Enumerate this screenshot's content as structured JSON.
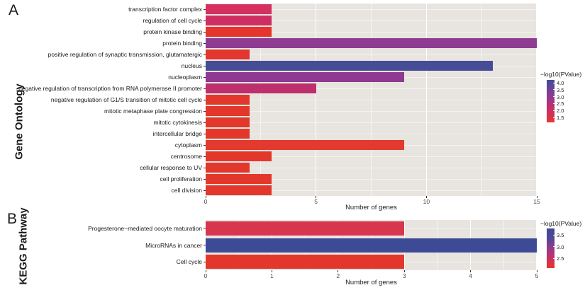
{
  "figure": {
    "panel_a_letter": "A",
    "panel_b_letter": "B"
  },
  "chart_data": [
    {
      "panel": "A",
      "type": "bar",
      "orientation": "horizontal",
      "ylabel": "Gene Ontology",
      "xlabel": "Number of genes",
      "xlim": [
        0,
        15
      ],
      "x_major_ticks": [
        0,
        5,
        10,
        15
      ],
      "x_minor_step": 2.5,
      "grid": "on",
      "panel_background": "#E8E4DF",
      "categories": [
        "transcription factor complex",
        "regulation of cell cycle",
        "protein kinase binding",
        "protein binding",
        "positive regulation of synaptic transmission, glutamatergic",
        "nucleus",
        "nucleoplasm",
        "negative regulation of transcription from RNA polymerase II promoter",
        "negative regulation of G1/S transition of mitotic cell cycle",
        "mitotic metaphase plate congression",
        "mitotic cytokinesis",
        "intercellular bridge",
        "cytoplasm",
        "centrosome",
        "cellular response to UV",
        "cell proliferation",
        "cell division"
      ],
      "values": [
        3,
        3,
        3,
        15,
        2,
        13,
        9,
        5,
        2,
        2,
        2,
        2,
        9,
        3,
        2,
        3,
        3
      ],
      "bar_colors": [
        "#D5305F",
        "#CF2E63",
        "#E5352C",
        "#8E3B92",
        "#E2362E",
        "#464D96",
        "#8E3A92",
        "#BE2F6E",
        "#E3372C",
        "#E3372C",
        "#E3372C",
        "#E3372C",
        "#E23A2E",
        "#E3372C",
        "#E3372C",
        "#E3372C",
        "#E3372C"
      ],
      "neg_log10_pvalue_approx": [
        2.1,
        2.15,
        1.6,
        3.0,
        1.6,
        4.0,
        3.0,
        2.5,
        1.55,
        1.55,
        1.55,
        1.55,
        1.6,
        1.55,
        1.55,
        1.55,
        1.55
      ],
      "legend": {
        "title": "−log10(PValue)",
        "position": "right",
        "tick_labels": [
          "4.0",
          "3.5",
          "3.0",
          "2.5",
          "2.0",
          "1.5"
        ],
        "gradient_stops": [
          "#424A98",
          "#6B4297",
          "#8F3B92",
          "#BE2F6E",
          "#D5305C",
          "#E5382C"
        ]
      }
    },
    {
      "panel": "B",
      "type": "bar",
      "orientation": "horizontal",
      "ylabel": "KEGG Pathway",
      "xlabel": "Number of genes",
      "xlim": [
        0,
        5
      ],
      "x_major_ticks": [
        0,
        1,
        2,
        3,
        4,
        5
      ],
      "x_minor_step": 0.5,
      "grid": "on",
      "panel_background": "#E8E4DF",
      "categories": [
        "Progesterone−mediated oocyte maturation",
        "MicroRNAs in cancer",
        "Cell cycle"
      ],
      "values": [
        3,
        5,
        3
      ],
      "bar_colors": [
        "#D8354F",
        "#3D4A96",
        "#E4372B"
      ],
      "neg_log10_pvalue_approx": [
        2.6,
        3.7,
        2.2
      ],
      "legend": {
        "title": "−log10(PValue)",
        "position": "right",
        "tick_labels": [
          "3.5",
          "3.0",
          "2.5"
        ],
        "gradient_stops": [
          "#3D4A96",
          "#504796",
          "#963A8D",
          "#C93060",
          "#E4372B"
        ]
      }
    }
  ]
}
